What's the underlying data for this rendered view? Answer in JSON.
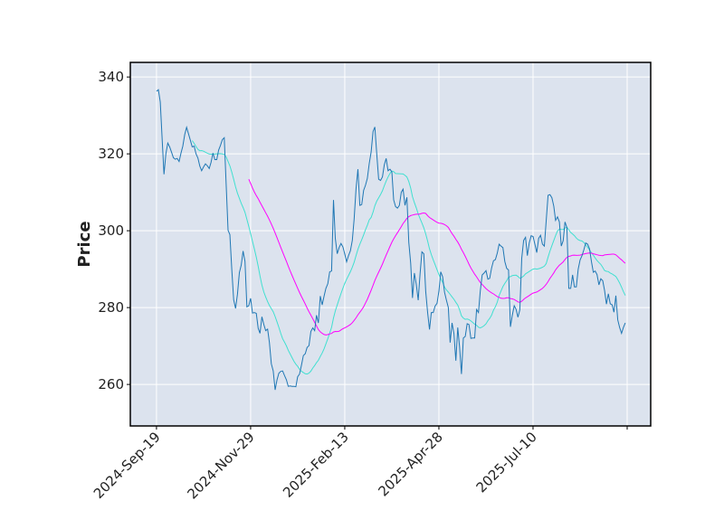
{
  "chart_data": {
    "type": "line",
    "title": "",
    "xlabel": "",
    "ylabel": "Price",
    "ylim": [
      249.2,
      343.8
    ],
    "xlim_index": [
      -13.9,
      262.5
    ],
    "grid": true,
    "y_ticks": [
      260,
      280,
      300,
      320,
      340
    ],
    "x_ticks": [
      {
        "index": 0,
        "label": "2024-Sep-19"
      },
      {
        "index": 50,
        "label": "2024-Nov-29"
      },
      {
        "index": 100,
        "label": "2025-Feb-13"
      },
      {
        "index": 150,
        "label": "2025-Apr-28"
      },
      {
        "index": 200,
        "label": "2025-Jul-10"
      },
      {
        "index": 250,
        "label": ""
      }
    ],
    "moving_averages": [
      {
        "window": 20,
        "color": "#40e0d0"
      },
      {
        "window": 50,
        "color": "#ff00ff"
      }
    ],
    "colors": {
      "close": "#1f77b4",
      "background": "#dce3ee",
      "grid": "#ffffff"
    },
    "close": [
      336.3,
      336.7,
      333.5,
      323.7,
      314.7,
      320,
      322.8,
      321.8,
      320.4,
      319,
      318.6,
      318.8,
      318,
      320.2,
      322,
      325,
      326.9,
      325.2,
      323.5,
      321.8,
      322,
      320,
      318.9,
      316.8,
      315.6,
      316.6,
      317.4,
      316.9,
      316.2,
      317.8,
      320.2,
      318.5,
      318.5,
      321,
      322.2,
      323.7,
      324.2,
      312,
      300.1,
      299,
      290,
      282,
      279.8,
      283.5,
      289.1,
      291,
      294.7,
      292,
      280.2,
      280.5,
      282.4,
      278.6,
      278.7,
      278.5,
      274.6,
      273.3,
      277.6,
      275.6,
      274,
      274.4,
      270.9,
      265.4,
      263.5,
      258.6,
      261.2,
      262.9,
      263.4,
      263.5,
      262.3,
      261.2,
      259.5,
      259.6,
      259.5,
      259.5,
      259.4,
      262,
      262.7,
      265,
      267.5,
      268,
      269.6,
      270.1,
      273.8,
      274.7,
      274,
      278,
      276,
      283,
      280.7,
      283,
      285,
      286.2,
      289.3,
      289.5,
      308,
      298,
      294,
      295.6,
      296.7,
      295.8,
      294,
      291.9,
      293.5,
      294.8,
      297.5,
      303,
      310.9,
      316,
      306.6,
      306.8,
      310.5,
      311.8,
      313.6,
      317.5,
      320.5,
      325.8,
      327,
      320,
      313.4,
      313.1,
      314,
      317.1,
      318.8,
      315.6,
      316,
      315.3,
      308,
      306.3,
      305.9,
      306.6,
      310,
      310.8,
      306.6,
      308.7,
      297,
      291.5,
      282.5,
      289,
      286,
      281.9,
      288.9,
      294.5,
      294,
      284.2,
      278.7,
      274.3,
      278.7,
      278.7,
      280.4,
      281.1,
      284.3,
      289.3,
      288,
      284,
      281.9,
      280,
      270.9,
      276,
      273.2,
      266.2,
      274.8,
      269.8,
      262.7,
      272.1,
      272.5,
      275.8,
      275.6,
      272,
      272.1,
      272.1,
      279.5,
      278.7,
      284.3,
      288.5,
      289,
      289.6,
      287.4,
      287.6,
      290.3,
      292.2,
      292.5,
      294.2,
      296.5,
      296,
      295.6,
      292,
      290.2,
      289.8,
      275,
      278,
      280.5,
      279.5,
      277.5,
      279.4,
      292.8,
      297.5,
      298.3,
      293.5,
      296.8,
      298.7,
      298.5,
      296.4,
      294.3,
      298,
      298.8,
      296.5,
      296,
      302.5,
      309.2,
      309.4,
      308.6,
      306.4,
      302.7,
      303.6,
      302.3,
      296,
      297.4,
      302.3,
      300.8,
      285,
      285,
      288.5,
      285.4,
      285.4,
      290,
      292.4,
      293.5,
      295,
      296.8,
      296.5,
      295.3,
      292,
      289.2,
      289.5,
      288.6,
      285.9,
      287.5,
      287,
      284.5,
      280.9,
      283.6,
      281,
      280.7,
      278.8,
      283.1,
      276.8,
      274.8,
      273.3,
      274.8,
      276
    ]
  }
}
